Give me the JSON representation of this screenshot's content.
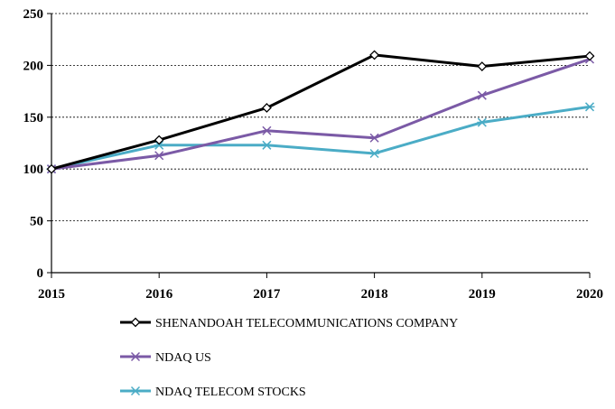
{
  "chart_data": {
    "type": "line",
    "title": "",
    "xlabel": "",
    "ylabel": "",
    "x": [
      "2015",
      "2016",
      "2017",
      "2018",
      "2019",
      "2020"
    ],
    "ylim": [
      0,
      250
    ],
    "yticks": [
      0,
      50,
      100,
      150,
      200,
      250
    ],
    "grid": "horizontal-dashed",
    "legend_position": "bottom",
    "series": [
      {
        "name": "SHENANDOAH TELECOMMUNICATIONS COMPANY",
        "values": [
          100,
          128,
          159,
          210,
          199,
          209
        ],
        "color": "#000000",
        "marker": "diamond"
      },
      {
        "name": "NDAQ US",
        "values": [
          100,
          113,
          137,
          130,
          171,
          206
        ],
        "color": "#7B5AA6",
        "marker": "x"
      },
      {
        "name": "NDAQ TELECOM STOCKS",
        "values": [
          100,
          123,
          123,
          115,
          145,
          160
        ],
        "color": "#4BACC6",
        "marker": "asterisk"
      }
    ]
  }
}
